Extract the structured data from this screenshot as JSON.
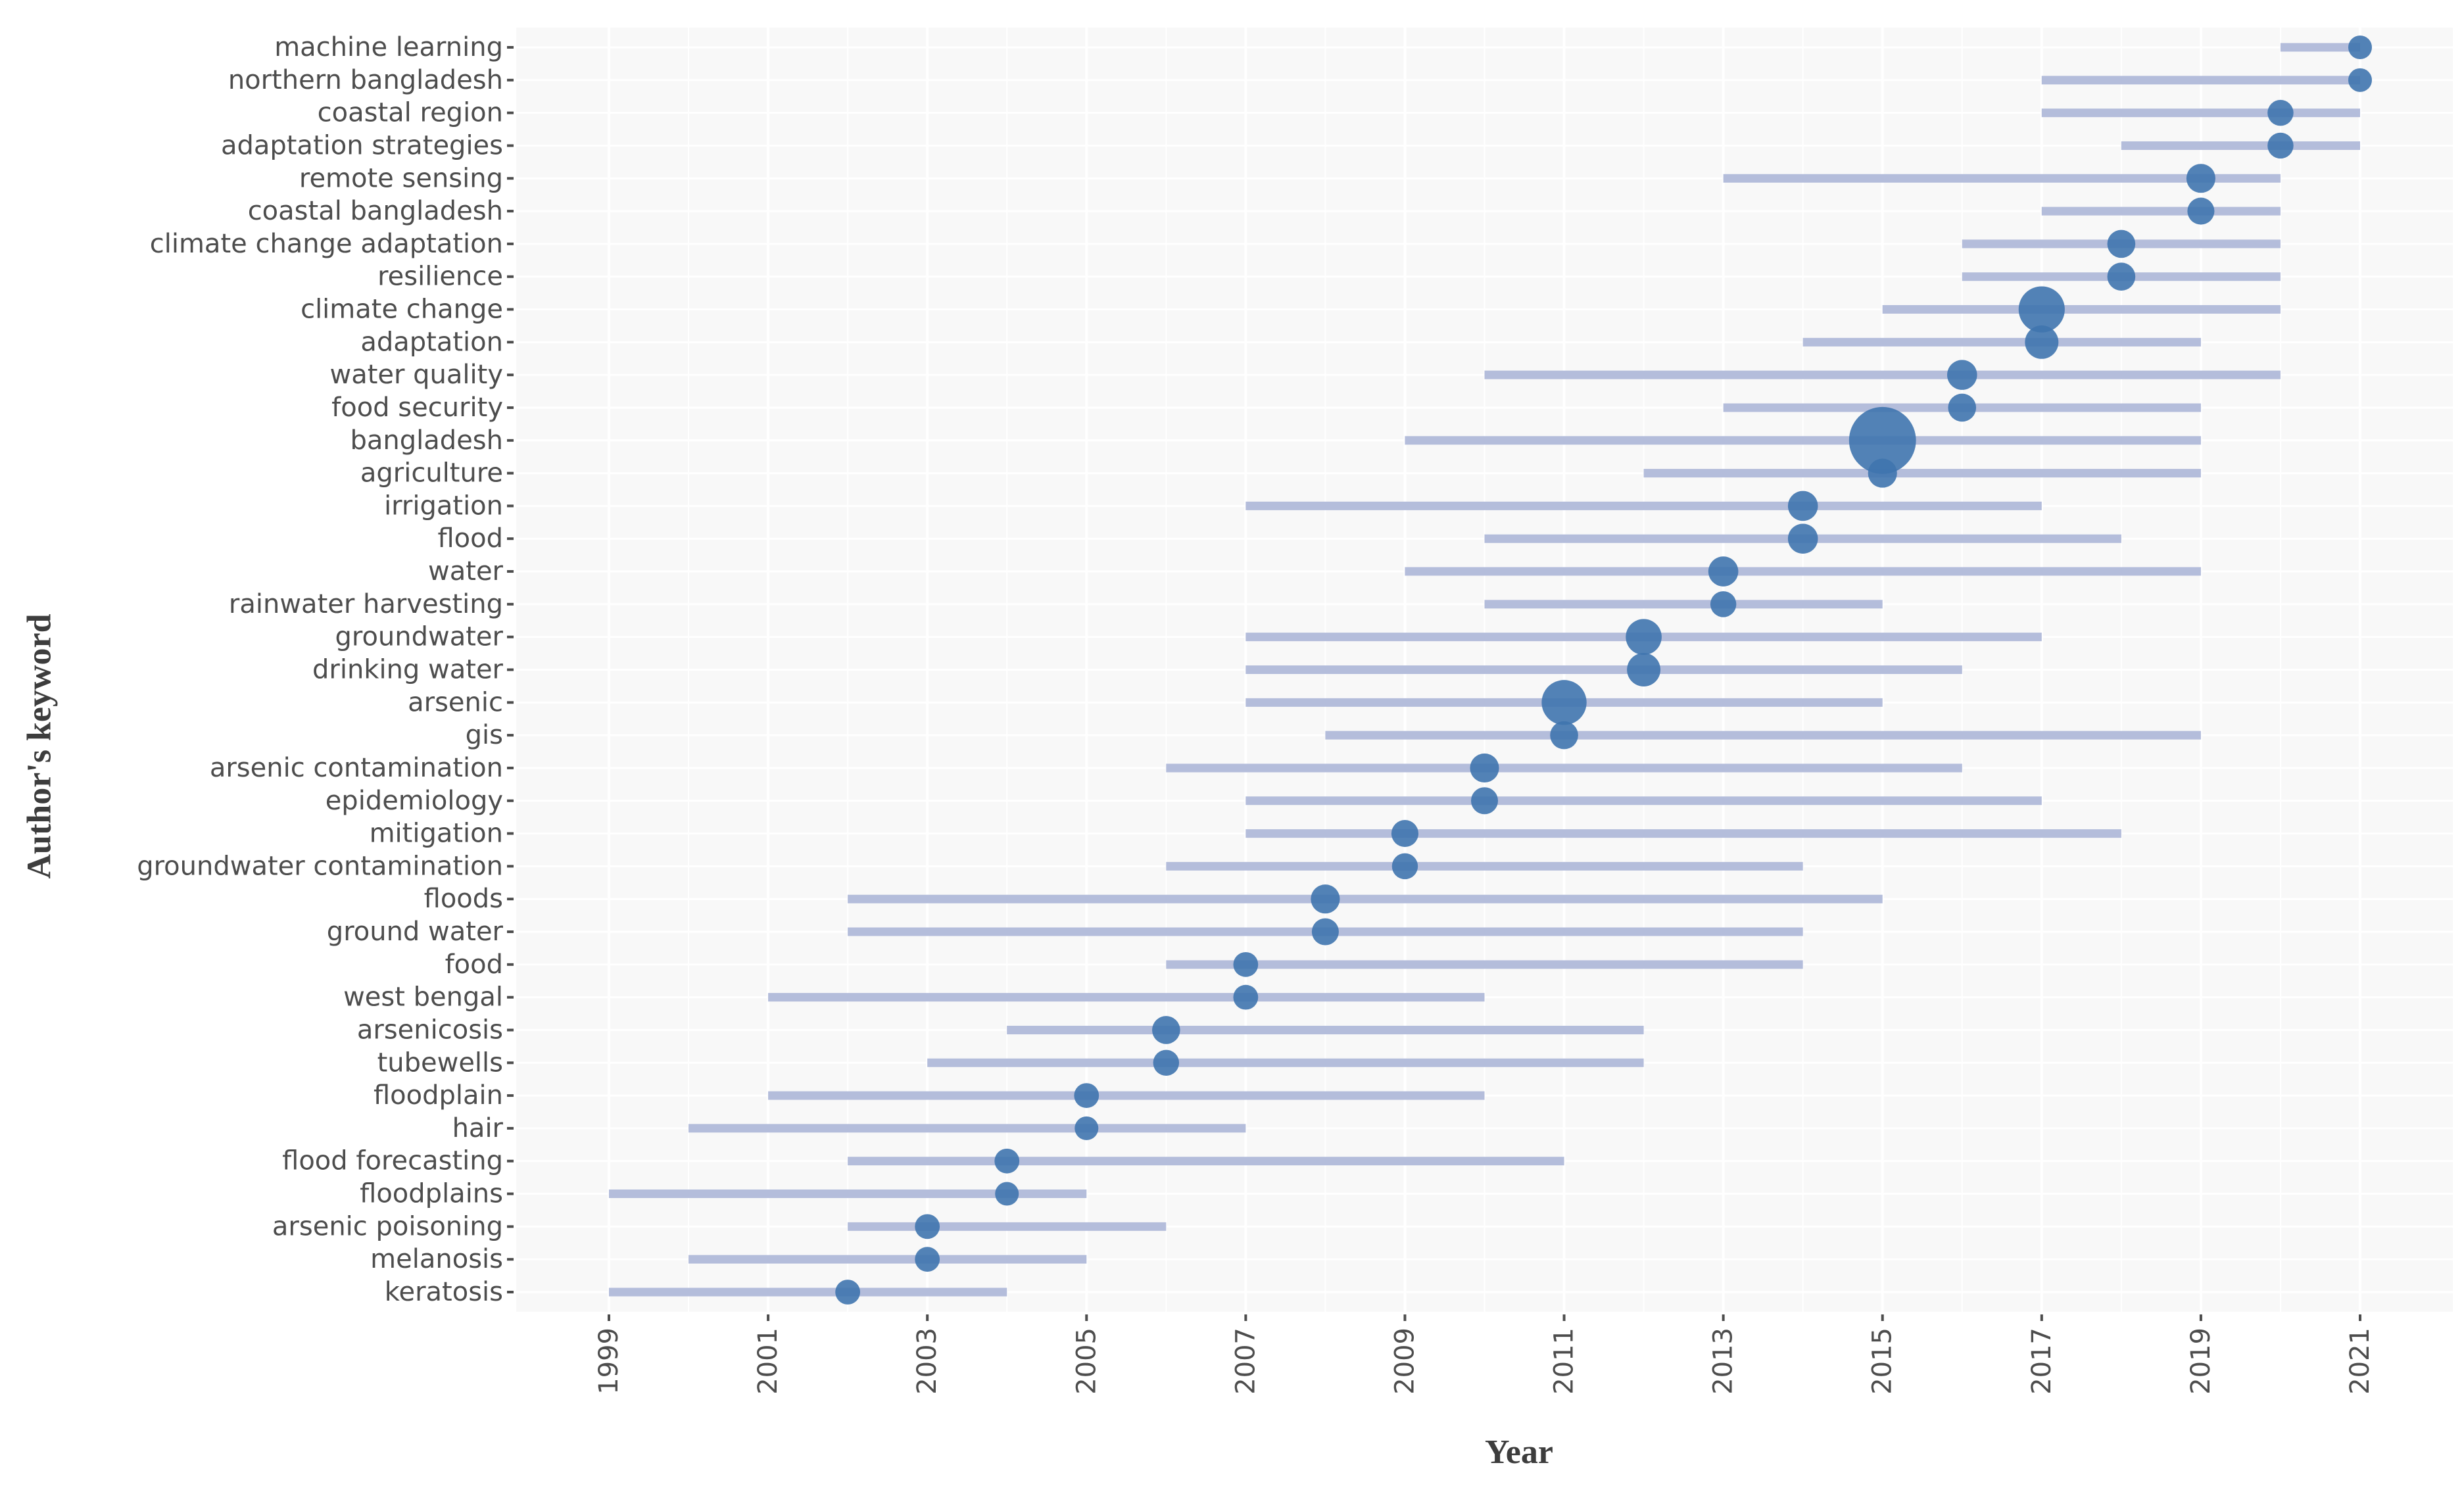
{
  "chart_data": {
    "type": "scatter",
    "subtype": "trend-topics-range-dot",
    "title": "",
    "xlabel": "Year",
    "ylabel": "Author's keyword",
    "xlim": [
      1999,
      2021
    ],
    "x_ticks": [
      "1999",
      "2001",
      "2003",
      "2005",
      "2007",
      "2009",
      "2011",
      "2013",
      "2015",
      "2017",
      "2019",
      "2021"
    ],
    "colors": {
      "range_line": "#b4bddb",
      "point": "#3f74ae",
      "plot_background": "#f8f8f8",
      "grid": "#ffffff",
      "tick": "#4d4d4d"
    },
    "series": [
      {
        "keyword": "machine learning",
        "start": 2020,
        "end": 2021,
        "median": 2021,
        "frequency": 1.0
      },
      {
        "keyword": "northern bangladesh",
        "start": 2017,
        "end": 2021,
        "median": 2021,
        "frequency": 1.0
      },
      {
        "keyword": "coastal region",
        "start": 2017,
        "end": 2021,
        "median": 2020,
        "frequency": 1.2
      },
      {
        "keyword": "adaptation strategies",
        "start": 2018,
        "end": 2021,
        "median": 2020,
        "frequency": 1.2
      },
      {
        "keyword": "remote sensing",
        "start": 2013,
        "end": 2020,
        "median": 2019,
        "frequency": 1.5
      },
      {
        "keyword": "coastal bangladesh",
        "start": 2017,
        "end": 2020,
        "median": 2019,
        "frequency": 1.3
      },
      {
        "keyword": "climate change adaptation",
        "start": 2016,
        "end": 2020,
        "median": 2018,
        "frequency": 1.4
      },
      {
        "keyword": "resilience",
        "start": 2016,
        "end": 2020,
        "median": 2018,
        "frequency": 1.4
      },
      {
        "keyword": "climate change",
        "start": 2015,
        "end": 2020,
        "median": 2017,
        "frequency": 3.8
      },
      {
        "keyword": "adaptation",
        "start": 2014,
        "end": 2019,
        "median": 2017,
        "frequency": 2.0
      },
      {
        "keyword": "water quality",
        "start": 2010,
        "end": 2020,
        "median": 2016,
        "frequency": 1.6
      },
      {
        "keyword": "food security",
        "start": 2013,
        "end": 2019,
        "median": 2016,
        "frequency": 1.4
      },
      {
        "keyword": "bangladesh",
        "start": 2009,
        "end": 2019,
        "median": 2015,
        "frequency": 8.0
      },
      {
        "keyword": "agriculture",
        "start": 2012,
        "end": 2019,
        "median": 2015,
        "frequency": 1.5
      },
      {
        "keyword": "irrigation",
        "start": 2007,
        "end": 2017,
        "median": 2014,
        "frequency": 1.6
      },
      {
        "keyword": "flood",
        "start": 2010,
        "end": 2018,
        "median": 2014,
        "frequency": 1.6
      },
      {
        "keyword": "water",
        "start": 2009,
        "end": 2019,
        "median": 2013,
        "frequency": 1.6
      },
      {
        "keyword": "rainwater harvesting",
        "start": 2010,
        "end": 2015,
        "median": 2013,
        "frequency": 1.2
      },
      {
        "keyword": "groundwater",
        "start": 2007,
        "end": 2017,
        "median": 2012,
        "frequency": 2.3
      },
      {
        "keyword": "drinking water",
        "start": 2007,
        "end": 2016,
        "median": 2012,
        "frequency": 2.0
      },
      {
        "keyword": "arsenic",
        "start": 2007,
        "end": 2015,
        "median": 2011,
        "frequency": 3.6
      },
      {
        "keyword": "gis",
        "start": 2008,
        "end": 2019,
        "median": 2011,
        "frequency": 1.4
      },
      {
        "keyword": "arsenic contamination",
        "start": 2006,
        "end": 2016,
        "median": 2010,
        "frequency": 1.5
      },
      {
        "keyword": "epidemiology",
        "start": 2007,
        "end": 2017,
        "median": 2010,
        "frequency": 1.3
      },
      {
        "keyword": "mitigation",
        "start": 2007,
        "end": 2018,
        "median": 2009,
        "frequency": 1.3
      },
      {
        "keyword": "groundwater contamination",
        "start": 2006,
        "end": 2014,
        "median": 2009,
        "frequency": 1.2
      },
      {
        "keyword": "floods",
        "start": 2002,
        "end": 2015,
        "median": 2008,
        "frequency": 1.5
      },
      {
        "keyword": "ground water",
        "start": 2002,
        "end": 2014,
        "median": 2008,
        "frequency": 1.3
      },
      {
        "keyword": "food",
        "start": 2006,
        "end": 2014,
        "median": 2007,
        "frequency": 1.1
      },
      {
        "keyword": "west bengal",
        "start": 2001,
        "end": 2010,
        "median": 2007,
        "frequency": 1.1
      },
      {
        "keyword": "arsenicosis",
        "start": 2004,
        "end": 2012,
        "median": 2006,
        "frequency": 1.4
      },
      {
        "keyword": "tubewells",
        "start": 2003,
        "end": 2012,
        "median": 2006,
        "frequency": 1.2
      },
      {
        "keyword": "floodplain",
        "start": 2001,
        "end": 2010,
        "median": 2005,
        "frequency": 1.1
      },
      {
        "keyword": "hair",
        "start": 2000,
        "end": 2007,
        "median": 2005,
        "frequency": 1.0
      },
      {
        "keyword": "flood forecasting",
        "start": 2002,
        "end": 2011,
        "median": 2004,
        "frequency": 1.1
      },
      {
        "keyword": "floodplains",
        "start": 1999,
        "end": 2005,
        "median": 2004,
        "frequency": 1.0
      },
      {
        "keyword": "arsenic poisoning",
        "start": 2002,
        "end": 2006,
        "median": 2003,
        "frequency": 1.1
      },
      {
        "keyword": "melanosis",
        "start": 2000,
        "end": 2005,
        "median": 2003,
        "frequency": 1.1
      },
      {
        "keyword": "keratosis",
        "start": 1999,
        "end": 2004,
        "median": 2002,
        "frequency": 1.1
      }
    ]
  }
}
